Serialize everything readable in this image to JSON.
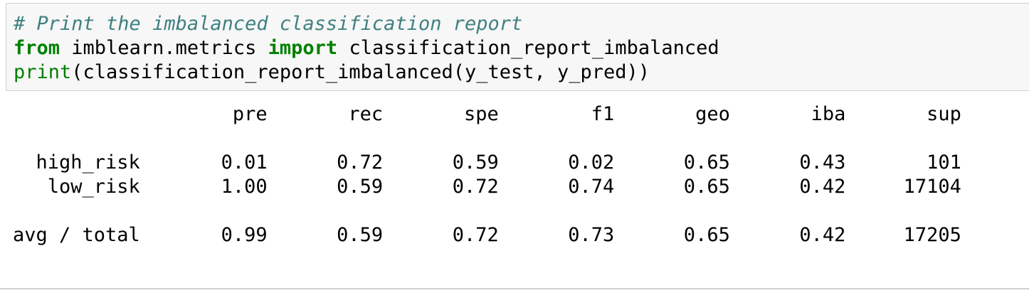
{
  "code": {
    "comment": "# Print the imbalanced classification report",
    "line2": {
      "kw_from": "from",
      "module": " imblearn.metrics ",
      "kw_import": "import",
      "name": " classification_report_imbalanced"
    },
    "line3": {
      "builtin_print": "print",
      "call": "(classification_report_imbalanced(y_test, y_pred))"
    }
  },
  "report": {
    "header": "                   pre       rec       spe        f1       geo       iba       sup",
    "rows": [
      "  high_risk       0.01      0.72      0.59      0.02      0.65      0.43       101",
      "   low_risk       1.00      0.59      0.72      0.74      0.65      0.42     17104",
      "avg / total       0.99      0.59      0.72      0.73      0.65      0.42     17205"
    ]
  }
}
